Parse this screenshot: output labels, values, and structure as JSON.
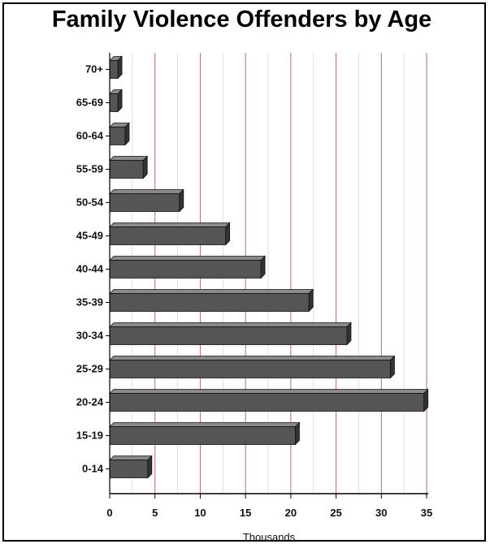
{
  "chart_data": {
    "type": "bar",
    "orientation": "horizontal",
    "title": "Family Violence Offenders by Age",
    "xlabel": "Thousands",
    "ylabel": "",
    "categories": [
      "0-14",
      "15-19",
      "20-24",
      "25-29",
      "30-34",
      "35-39",
      "40-44",
      "45-49",
      "50-54",
      "55-59",
      "60-64",
      "65-69",
      "70+"
    ],
    "values": [
      4.2,
      20.5,
      34.7,
      31.0,
      26.2,
      22.0,
      16.7,
      12.8,
      7.7,
      3.7,
      1.7,
      0.9,
      0.9
    ],
    "xlim": [
      0,
      35
    ],
    "xticks": [
      "0",
      "5",
      "10",
      "15",
      "20",
      "25",
      "30",
      "35"
    ],
    "grid": true,
    "bar_color": "#555555",
    "bar_top_color": "#8a8a8a",
    "bar_side_color": "#333333",
    "grid_color": "#999999",
    "grid_accent_color": "#b07070"
  }
}
